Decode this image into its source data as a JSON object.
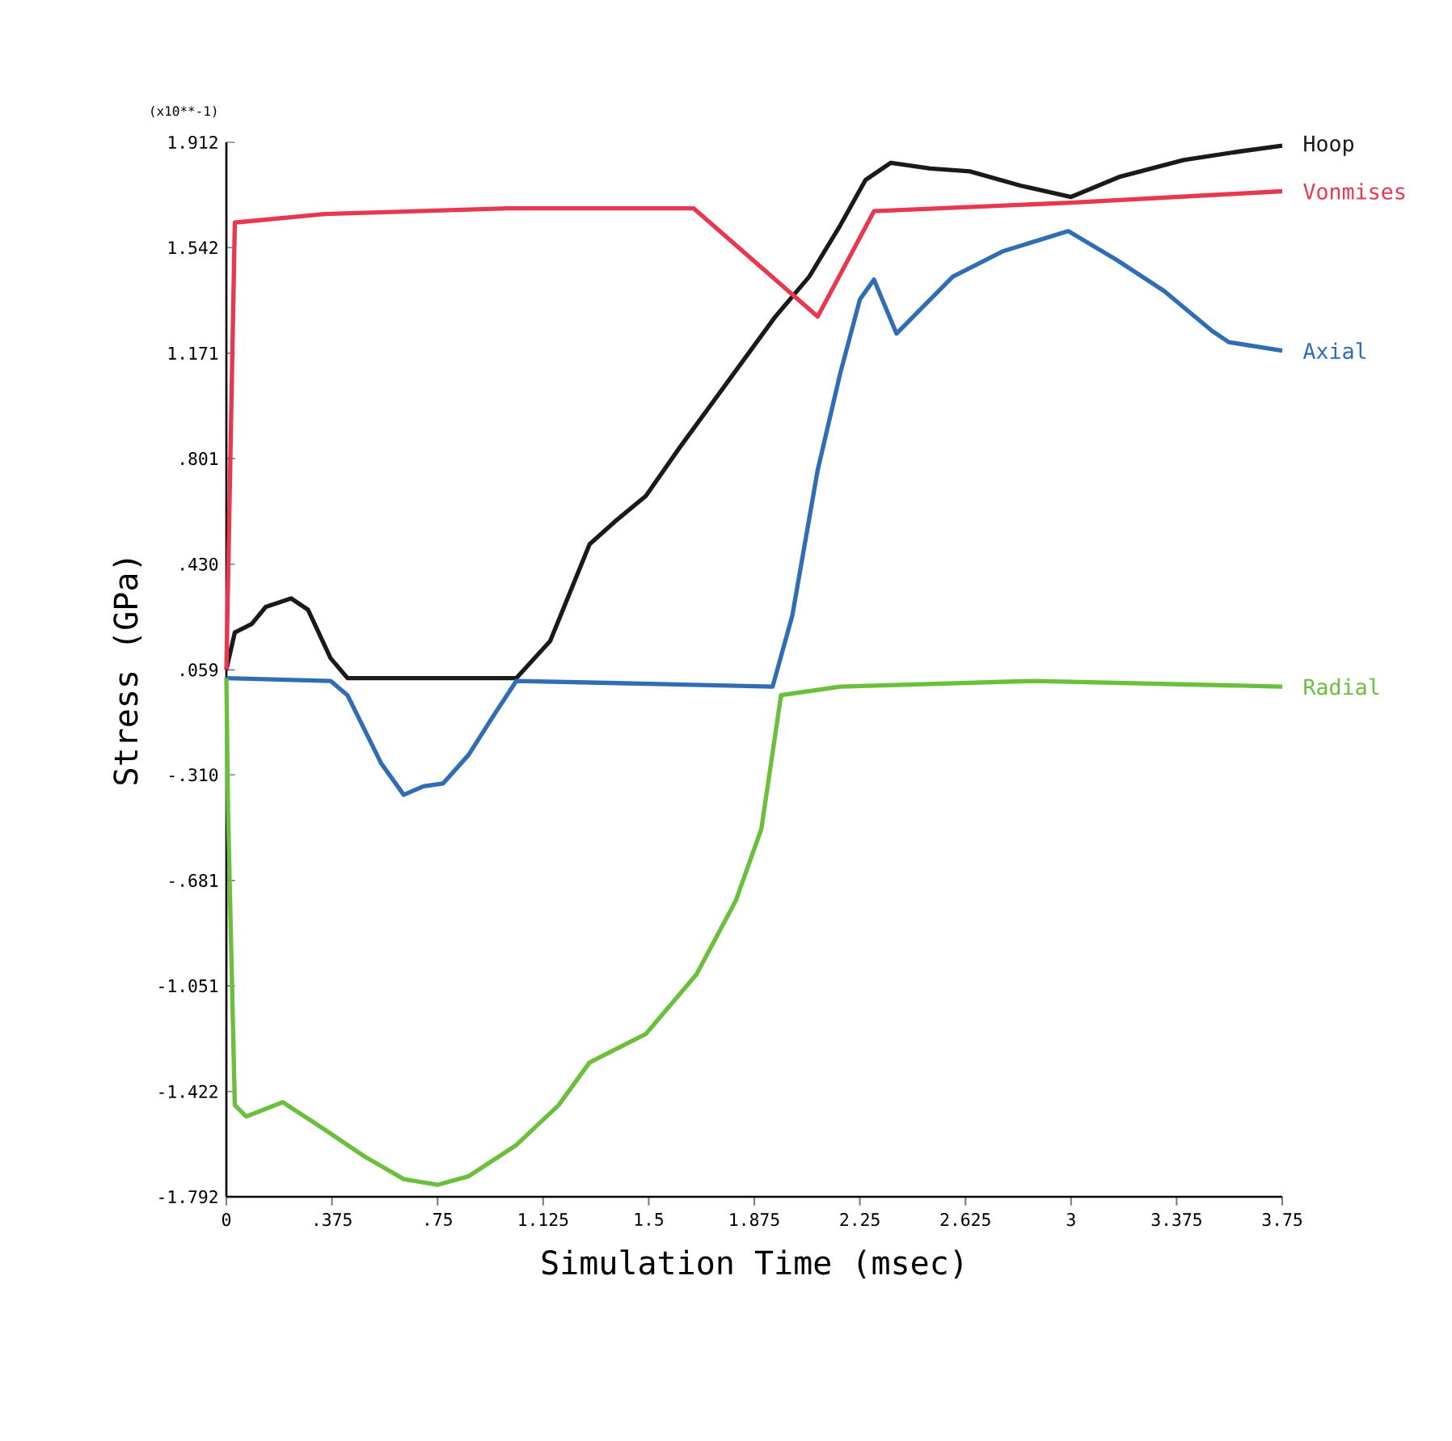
{
  "chart_data": {
    "type": "line",
    "xlabel": "Simulation Time (msec)",
    "ylabel": "Stress (GPa)",
    "annotations": [
      "(x10**-1)"
    ],
    "xlim": [
      0,
      3.75
    ],
    "ylim": [
      -1.792,
      1.912
    ],
    "xticks": [
      0,
      {
        "value": 0.375,
        "label": ".375"
      },
      {
        "value": 0.75,
        "label": ".75"
      },
      1.125,
      1.5,
      1.875,
      2.25,
      2.625,
      3,
      3.375,
      3.75
    ],
    "yticks": [
      1.912,
      1.542,
      1.171,
      {
        "value": 0.801,
        "label": ".801"
      },
      {
        "value": 0.43,
        "label": ".430"
      },
      {
        "value": 0.059,
        "label": ".059"
      },
      {
        "value": -0.31,
        "label": "-.310"
      },
      {
        "value": -0.681,
        "label": "-.681"
      },
      -1.051,
      -1.422,
      -1.792
    ],
    "series": [
      {
        "name": "Hoop",
        "color": "#1a1a1a",
        "x": [
          0,
          0.03,
          0.09,
          0.14,
          0.23,
          0.29,
          0.37,
          0.43,
          1.03,
          1.15,
          1.29,
          1.38,
          1.49,
          1.61,
          1.78,
          1.95,
          2.07,
          2.18,
          2.27,
          2.36,
          2.5,
          2.64,
          2.82,
          3.0,
          3.17,
          3.4,
          3.6,
          3.75
        ],
        "values": [
          0.06,
          0.19,
          0.22,
          0.28,
          0.31,
          0.27,
          0.1,
          0.03,
          0.03,
          0.16,
          0.5,
          0.58,
          0.67,
          0.84,
          1.07,
          1.3,
          1.44,
          1.62,
          1.78,
          1.84,
          1.82,
          1.81,
          1.76,
          1.72,
          1.79,
          1.85,
          1.88,
          1.9
        ]
      },
      {
        "name": "Vonmises",
        "color": "#e8384f",
        "x": [
          0,
          0.03,
          0.35,
          1.0,
          1.66,
          2.1,
          2.3,
          3.0,
          3.75
        ],
        "values": [
          0.06,
          1.63,
          1.66,
          1.68,
          1.68,
          1.3,
          1.67,
          1.7,
          1.74
        ]
      },
      {
        "name": "Axial",
        "color": "#2f6db5",
        "x": [
          0,
          0.37,
          0.43,
          0.55,
          0.63,
          0.7,
          0.77,
          0.86,
          0.95,
          1.03,
          1.5,
          1.94,
          2.01,
          2.1,
          2.18,
          2.25,
          2.3,
          2.38,
          2.44,
          2.58,
          2.76,
          2.99,
          3.16,
          3.33,
          3.5,
          3.56,
          3.75
        ],
        "values": [
          0.03,
          0.02,
          -0.03,
          -0.27,
          -0.38,
          -0.35,
          -0.34,
          -0.24,
          -0.1,
          0.02,
          0.01,
          0.0,
          0.25,
          0.76,
          1.1,
          1.36,
          1.43,
          1.24,
          1.3,
          1.44,
          1.53,
          1.6,
          1.5,
          1.39,
          1.25,
          1.21,
          1.18
        ]
      },
      {
        "name": "Radial",
        "color": "#6abf3b",
        "x": [
          0,
          0.006,
          0.03,
          0.07,
          0.2,
          0.34,
          0.49,
          0.63,
          0.75,
          0.86,
          1.03,
          1.18,
          1.29,
          1.49,
          1.67,
          1.81,
          1.9,
          1.97,
          2.18,
          2.87,
          3.75
        ],
        "values": [
          0.03,
          -0.44,
          -1.47,
          -1.51,
          -1.46,
          -1.55,
          -1.65,
          -1.73,
          -1.75,
          -1.72,
          -1.61,
          -1.47,
          -1.32,
          -1.22,
          -1.01,
          -0.75,
          -0.5,
          -0.03,
          0.0,
          0.02,
          0.0
        ]
      }
    ]
  }
}
